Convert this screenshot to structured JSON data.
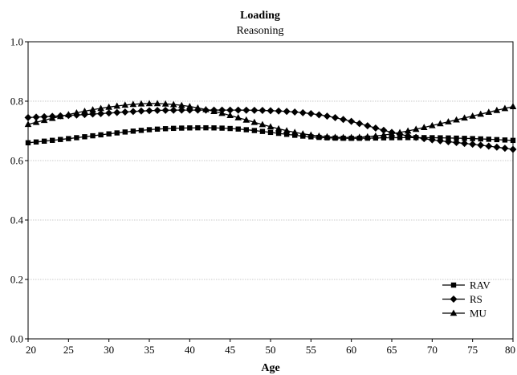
{
  "chart_data": {
    "type": "line",
    "title": "Loading",
    "subtitle": "Reasoning",
    "xlabel": "Age",
    "ylabel": "",
    "xlim": [
      20,
      80
    ],
    "ylim": [
      0.0,
      1.0
    ],
    "x_ticks": [
      "20",
      "25",
      "30",
      "35",
      "40",
      "45",
      "50",
      "55",
      "60",
      "65",
      "70",
      "75",
      "80"
    ],
    "y_ticks": [
      "0.0",
      "0.2",
      "0.4",
      "0.6",
      "0.8",
      "1.0"
    ],
    "grid": "horizontal",
    "legend_position": "bottom-right",
    "x": [
      20,
      25,
      30,
      35,
      40,
      45,
      50,
      55,
      60,
      65,
      70,
      75,
      80
    ],
    "series": [
      {
        "name": "RAV",
        "marker": "square",
        "values": [
          0.66,
          0.674,
          0.69,
          0.704,
          0.71,
          0.708,
          0.695,
          0.68,
          0.675,
          0.677,
          0.677,
          0.674,
          0.668
        ]
      },
      {
        "name": "RS",
        "marker": "diamond",
        "values": [
          0.745,
          0.752,
          0.76,
          0.768,
          0.77,
          0.77,
          0.768,
          0.758,
          0.732,
          0.695,
          0.67,
          0.655,
          0.638
        ]
      },
      {
        "name": "MU",
        "marker": "triangle",
        "values": [
          0.722,
          0.755,
          0.78,
          0.792,
          0.782,
          0.752,
          0.714,
          0.686,
          0.678,
          0.69,
          0.718,
          0.75,
          0.782
        ]
      }
    ]
  }
}
